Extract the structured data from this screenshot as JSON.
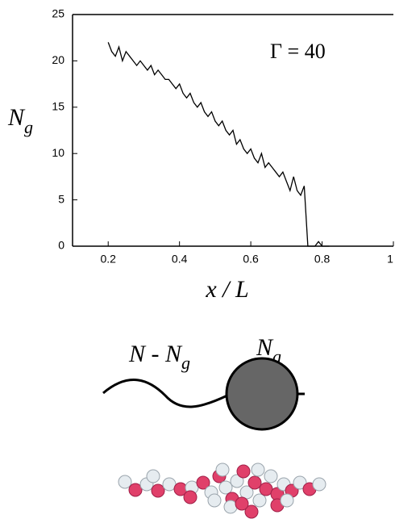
{
  "chart_data": {
    "type": "line",
    "annotation": "Γ = 40",
    "x_label": "x / L",
    "y_label": {
      "main": "N",
      "sub": "g"
    },
    "xlim": [
      0.1,
      1
    ],
    "xticks": [
      0.2,
      0.4,
      0.6,
      0.8,
      1
    ],
    "ylim": [
      0,
      25
    ],
    "yticks": [
      0,
      5,
      10,
      15,
      20,
      25
    ],
    "series": [
      {
        "color": "#000000",
        "x": [
          0.2,
          0.21,
          0.22,
          0.23,
          0.24,
          0.25,
          0.26,
          0.27,
          0.28,
          0.29,
          0.3,
          0.31,
          0.32,
          0.33,
          0.34,
          0.35,
          0.36,
          0.37,
          0.38,
          0.39,
          0.4,
          0.41,
          0.42,
          0.43,
          0.44,
          0.45,
          0.46,
          0.47,
          0.48,
          0.49,
          0.5,
          0.51,
          0.52,
          0.53,
          0.54,
          0.55,
          0.56,
          0.57,
          0.58,
          0.59,
          0.6,
          0.61,
          0.62,
          0.63,
          0.64,
          0.65,
          0.66,
          0.67,
          0.68,
          0.69,
          0.7,
          0.71,
          0.72,
          0.73,
          0.74,
          0.75,
          0.76,
          0.77,
          0.78,
          0.79,
          0.8,
          0.81,
          0.82
        ],
        "values": [
          22,
          21,
          20.5,
          21.5,
          20,
          21,
          20.5,
          20,
          19.5,
          20,
          19.5,
          19,
          19.5,
          18.5,
          19,
          18.5,
          18,
          18,
          17.5,
          17,
          17.5,
          16.5,
          16,
          16.5,
          15.5,
          15,
          15.5,
          14.5,
          14,
          14.5,
          13.5,
          13,
          13.5,
          12.5,
          12,
          12.5,
          11,
          11.5,
          10.5,
          10,
          10.5,
          9.5,
          9,
          10,
          8.5,
          9,
          8.5,
          8,
          7.5,
          8,
          7,
          6,
          7.5,
          6,
          5.5,
          6.5,
          0,
          0,
          0,
          0.5,
          0,
          0,
          0
        ]
      }
    ]
  },
  "diagram": {
    "left_label": {
      "main": "N - N",
      "sub": "g"
    },
    "right_label": {
      "main": "N",
      "sub": "g"
    }
  }
}
